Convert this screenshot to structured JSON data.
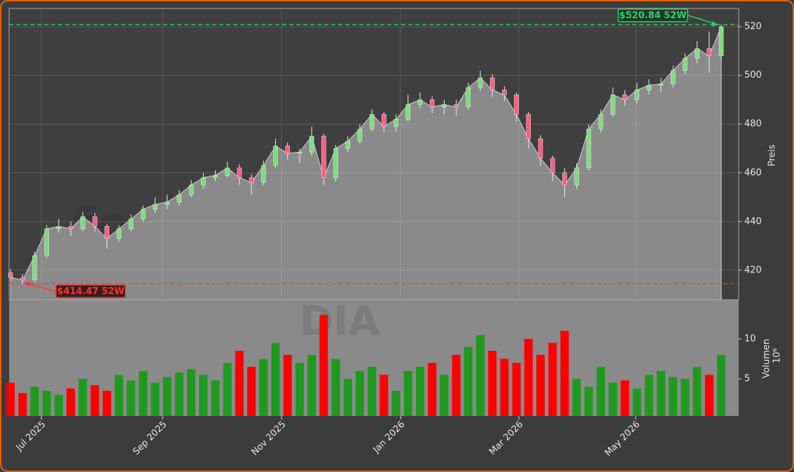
{
  "chart_data": [
    {
      "type": "candlestick",
      "ylabel": "Preis",
      "watermark": "forexsignale.trade",
      "open": [
        419,
        417,
        416,
        426,
        437,
        438,
        437,
        442,
        438,
        433,
        437,
        441,
        445,
        447,
        448,
        451,
        455,
        458,
        459,
        462,
        458,
        456,
        463,
        471,
        468,
        468.5,
        475,
        458,
        470,
        473,
        478,
        484,
        479,
        482,
        488,
        490,
        487,
        488,
        487,
        495,
        499,
        494,
        492,
        484,
        474,
        466,
        460,
        455,
        462,
        478,
        484,
        492,
        490,
        494,
        496,
        496.5,
        502,
        507,
        511,
        508
      ],
      "high": [
        420.5,
        418.5,
        427.5,
        438.5,
        441,
        440,
        444,
        443.5,
        439,
        438.5,
        443,
        446.5,
        450,
        451,
        453,
        457,
        460,
        461,
        464.5,
        463.5,
        459.5,
        465,
        474,
        472.5,
        470,
        479,
        476,
        471.5,
        475,
        480,
        486,
        485,
        484,
        492,
        493,
        491.5,
        490,
        490,
        497,
        502,
        500.5,
        495.5,
        493,
        485,
        475.5,
        467,
        462,
        464,
        480,
        486,
        495,
        494,
        497,
        498.5,
        499,
        504,
        509,
        514,
        518,
        520.84
      ],
      "low": [
        415.5,
        414.47,
        415,
        425,
        435.5,
        434,
        436,
        436,
        429,
        431.5,
        436,
        440,
        443.5,
        445,
        446.5,
        450,
        453.5,
        456.5,
        458,
        455,
        451,
        455,
        462,
        465.5,
        464,
        467,
        455,
        456.5,
        468.5,
        472,
        477,
        476.5,
        477,
        481,
        486.5,
        484.5,
        484,
        483.5,
        486,
        493.5,
        491,
        489.5,
        481,
        470,
        463,
        456.5,
        450,
        453.5,
        461,
        476.5,
        483,
        487.5,
        488.5,
        492,
        493,
        495,
        500.5,
        505,
        501,
        506
      ],
      "close": [
        417,
        416,
        426,
        437,
        438,
        437,
        442,
        438,
        433,
        437,
        441,
        445,
        447,
        448,
        451,
        455,
        458,
        459,
        462,
        458,
        456,
        463,
        471,
        468,
        468.5,
        475,
        458,
        470,
        473,
        478,
        484,
        479,
        482,
        488,
        490,
        487,
        488,
        487,
        495,
        499,
        494,
        492,
        484,
        474,
        466,
        460,
        455,
        462,
        478,
        484,
        492,
        490,
        494,
        496,
        496.5,
        502,
        507,
        511,
        508,
        520
      ],
      "up_color": "#7edc7e",
      "down_color": "#ff5c8a",
      "area_color": "#8a8a8a",
      "ylim": [
        407.9,
        527.5
      ],
      "yticks": [
        420,
        440,
        460,
        480,
        500,
        520
      ],
      "xlim": [
        -0.12,
        60.45
      ],
      "xticks": [
        2.56,
        12.62,
        22.5,
        32.38,
        42.2,
        51.9
      ],
      "grid": true,
      "annotations": [
        {
          "text": "$520.84 52W",
          "value": 520.84,
          "color": "#2ecc71"
        },
        {
          "text": "$414.47 52W",
          "value": 414.47,
          "color": "#ff3333"
        }
      ]
    },
    {
      "type": "bar",
      "ylabel": "Volumen",
      "multiplier": "10⁶",
      "watermark": "DIA",
      "values": [
        4.5,
        3.2,
        4.0,
        3.5,
        3.0,
        3.8,
        5.0,
        4.2,
        3.5,
        5.5,
        4.8,
        6.0,
        4.5,
        5.2,
        5.8,
        6.2,
        5.5,
        4.8,
        7.0,
        8.5,
        6.5,
        7.5,
        9.5,
        8.0,
        7.0,
        8.0,
        13.0,
        7.5,
        5.0,
        6.0,
        6.5,
        5.5,
        3.5,
        6.0,
        6.5,
        7.0,
        5.5,
        8.0,
        9.0,
        10.5,
        8.5,
        7.5,
        7.0,
        10.0,
        8.0,
        9.5,
        11.0,
        5.0,
        4.0,
        6.5,
        4.5,
        4.8,
        3.8,
        5.5,
        6.0,
        5.2,
        5.0,
        6.5,
        5.5,
        8.0
      ],
      "up_color": "#1f9a1f",
      "down_color": "#ff0000",
      "ylim": [
        0.35,
        14.9
      ],
      "yticks": [
        5,
        10
      ],
      "xlim": [
        -0.12,
        60.45
      ],
      "xticks": [
        {
          "value": 2.56,
          "label": "Jul 2025"
        },
        {
          "value": 12.62,
          "label": "Sep 2025"
        },
        {
          "value": 22.5,
          "label": "Nov 2025"
        },
        {
          "value": 32.38,
          "label": "Jan 2026"
        },
        {
          "value": 42.2,
          "label": "Mar 2026"
        },
        {
          "value": 51.9,
          "label": "May 2026"
        }
      ]
    }
  ]
}
